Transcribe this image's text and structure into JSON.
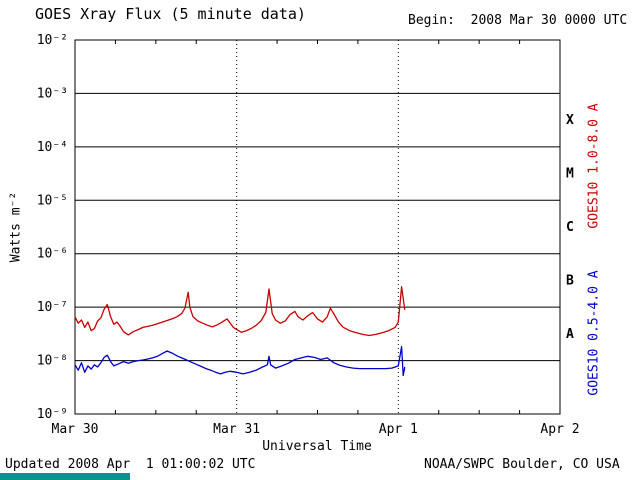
{
  "header": {
    "title": "GOES Xray Flux (5 minute data)",
    "begin": "Begin:  2008 Mar 30 0000 UTC"
  },
  "footer": {
    "updated": "Updated 2008 Apr  1 01:00:02 UTC",
    "credit": "NOAA/SWPC Boulder, CO USA"
  },
  "page": {
    "bottom_bar_color": "#0d9191"
  },
  "chart_data": {
    "type": "line",
    "title": "GOES Xray Flux (5 minute data)",
    "xlabel": "Universal Time",
    "ylabel": "Watts m⁻²",
    "y_scale": "log10",
    "y_log_range": [
      -9,
      -2
    ],
    "x_day_range": [
      0,
      3
    ],
    "grid": "horizontal solid per decade, vertical dotted per day",
    "x_ticks": [
      {
        "label": "Mar 30",
        "day": 0
      },
      {
        "label": "Mar 31",
        "day": 1
      },
      {
        "label": "Apr 1",
        "day": 2
      },
      {
        "label": "Apr 2",
        "day": 3
      }
    ],
    "y_ticks": [
      {
        "label": "10⁻²",
        "log": -2
      },
      {
        "label": "10⁻³",
        "log": -3
      },
      {
        "label": "10⁻⁴",
        "log": -4
      },
      {
        "label": "10⁻⁵",
        "log": -5
      },
      {
        "label": "10⁻⁶",
        "log": -6
      },
      {
        "label": "10⁻⁷",
        "log": -7
      },
      {
        "label": "10⁻⁸",
        "log": -8
      },
      {
        "label": "10⁻⁹",
        "log": -9
      }
    ],
    "day_gridlines": [
      1,
      2
    ],
    "flare_classes": [
      {
        "label": "X",
        "log": -3.5
      },
      {
        "label": "M",
        "log": -4.5
      },
      {
        "label": "C",
        "log": -5.5
      },
      {
        "label": "B",
        "log": -6.5
      },
      {
        "label": "A",
        "log": -7.5
      }
    ],
    "series": [
      {
        "name": "GOES10 1.0-8.0 A",
        "color": "#c80000",
        "points_format": [
          "days since Mar 30 0000 UTC",
          "log10 flux W/m2"
        ],
        "points": [
          [
            0.0,
            -7.18
          ],
          [
            0.02,
            -7.3
          ],
          [
            0.04,
            -7.24
          ],
          [
            0.06,
            -7.38
          ],
          [
            0.08,
            -7.28
          ],
          [
            0.1,
            -7.44
          ],
          [
            0.12,
            -7.4
          ],
          [
            0.14,
            -7.26
          ],
          [
            0.16,
            -7.2
          ],
          [
            0.18,
            -7.04
          ],
          [
            0.2,
            -6.95
          ],
          [
            0.22,
            -7.18
          ],
          [
            0.24,
            -7.32
          ],
          [
            0.26,
            -7.28
          ],
          [
            0.28,
            -7.36
          ],
          [
            0.3,
            -7.46
          ],
          [
            0.33,
            -7.52
          ],
          [
            0.36,
            -7.46
          ],
          [
            0.39,
            -7.42
          ],
          [
            0.42,
            -7.38
          ],
          [
            0.45,
            -7.36
          ],
          [
            0.48,
            -7.34
          ],
          [
            0.51,
            -7.31
          ],
          [
            0.54,
            -7.28
          ],
          [
            0.57,
            -7.25
          ],
          [
            0.6,
            -7.22
          ],
          [
            0.63,
            -7.18
          ],
          [
            0.66,
            -7.12
          ],
          [
            0.68,
            -7.02
          ],
          [
            0.7,
            -6.72
          ],
          [
            0.71,
            -7.0
          ],
          [
            0.73,
            -7.18
          ],
          [
            0.76,
            -7.26
          ],
          [
            0.79,
            -7.3
          ],
          [
            0.82,
            -7.34
          ],
          [
            0.85,
            -7.37
          ],
          [
            0.88,
            -7.33
          ],
          [
            0.91,
            -7.28
          ],
          [
            0.94,
            -7.22
          ],
          [
            0.96,
            -7.3
          ],
          [
            0.98,
            -7.38
          ],
          [
            1.0,
            -7.42
          ],
          [
            1.03,
            -7.47
          ],
          [
            1.06,
            -7.44
          ],
          [
            1.09,
            -7.4
          ],
          [
            1.12,
            -7.34
          ],
          [
            1.15,
            -7.26
          ],
          [
            1.18,
            -7.1
          ],
          [
            1.2,
            -6.66
          ],
          [
            1.22,
            -7.12
          ],
          [
            1.24,
            -7.24
          ],
          [
            1.27,
            -7.3
          ],
          [
            1.3,
            -7.26
          ],
          [
            1.33,
            -7.14
          ],
          [
            1.36,
            -7.08
          ],
          [
            1.38,
            -7.18
          ],
          [
            1.41,
            -7.24
          ],
          [
            1.44,
            -7.16
          ],
          [
            1.47,
            -7.1
          ],
          [
            1.5,
            -7.22
          ],
          [
            1.53,
            -7.28
          ],
          [
            1.56,
            -7.18
          ],
          [
            1.58,
            -7.02
          ],
          [
            1.6,
            -7.12
          ],
          [
            1.63,
            -7.28
          ],
          [
            1.66,
            -7.38
          ],
          [
            1.7,
            -7.44
          ],
          [
            1.74,
            -7.48
          ],
          [
            1.78,
            -7.51
          ],
          [
            1.82,
            -7.53
          ],
          [
            1.86,
            -7.51
          ],
          [
            1.9,
            -7.48
          ],
          [
            1.94,
            -7.44
          ],
          [
            1.98,
            -7.38
          ],
          [
            2.0,
            -7.28
          ],
          [
            2.02,
            -6.62
          ],
          [
            2.04,
            -7.05
          ]
        ]
      },
      {
        "name": "GOES10 0.5-4.0 A",
        "color": "#0000c8",
        "points_format": [
          "days since Mar 30 0000 UTC",
          "log10 flux W/m2"
        ],
        "points": [
          [
            0.0,
            -8.08
          ],
          [
            0.02,
            -8.18
          ],
          [
            0.04,
            -8.04
          ],
          [
            0.06,
            -8.22
          ],
          [
            0.08,
            -8.1
          ],
          [
            0.1,
            -8.16
          ],
          [
            0.12,
            -8.08
          ],
          [
            0.14,
            -8.12
          ],
          [
            0.16,
            -8.04
          ],
          [
            0.18,
            -7.94
          ],
          [
            0.2,
            -7.9
          ],
          [
            0.22,
            -8.02
          ],
          [
            0.24,
            -8.1
          ],
          [
            0.27,
            -8.06
          ],
          [
            0.3,
            -8.02
          ],
          [
            0.33,
            -8.05
          ],
          [
            0.36,
            -8.02
          ],
          [
            0.39,
            -8.0
          ],
          [
            0.42,
            -7.99
          ],
          [
            0.45,
            -7.97
          ],
          [
            0.48,
            -7.95
          ],
          [
            0.51,
            -7.92
          ],
          [
            0.54,
            -7.87
          ],
          [
            0.57,
            -7.82
          ],
          [
            0.6,
            -7.86
          ],
          [
            0.63,
            -7.91
          ],
          [
            0.66,
            -7.95
          ],
          [
            0.69,
            -7.99
          ],
          [
            0.72,
            -8.03
          ],
          [
            0.75,
            -8.07
          ],
          [
            0.78,
            -8.11
          ],
          [
            0.81,
            -8.15
          ],
          [
            0.84,
            -8.18
          ],
          [
            0.87,
            -8.22
          ],
          [
            0.9,
            -8.25
          ],
          [
            0.93,
            -8.22
          ],
          [
            0.96,
            -8.2
          ],
          [
            1.0,
            -8.22
          ],
          [
            1.04,
            -8.25
          ],
          [
            1.08,
            -8.22
          ],
          [
            1.12,
            -8.18
          ],
          [
            1.16,
            -8.12
          ],
          [
            1.19,
            -8.08
          ],
          [
            1.2,
            -7.92
          ],
          [
            1.21,
            -8.08
          ],
          [
            1.24,
            -8.14
          ],
          [
            1.28,
            -8.1
          ],
          [
            1.32,
            -8.05
          ],
          [
            1.36,
            -7.98
          ],
          [
            1.4,
            -7.95
          ],
          [
            1.44,
            -7.92
          ],
          [
            1.48,
            -7.94
          ],
          [
            1.52,
            -7.98
          ],
          [
            1.56,
            -7.95
          ],
          [
            1.6,
            -8.04
          ],
          [
            1.64,
            -8.09
          ],
          [
            1.68,
            -8.12
          ],
          [
            1.72,
            -8.14
          ],
          [
            1.76,
            -8.15
          ],
          [
            1.8,
            -8.15
          ],
          [
            1.84,
            -8.15
          ],
          [
            1.88,
            -8.15
          ],
          [
            1.92,
            -8.15
          ],
          [
            1.96,
            -8.14
          ],
          [
            2.0,
            -8.1
          ],
          [
            2.02,
            -7.74
          ],
          [
            2.03,
            -8.28
          ],
          [
            2.04,
            -8.12
          ]
        ]
      }
    ]
  }
}
